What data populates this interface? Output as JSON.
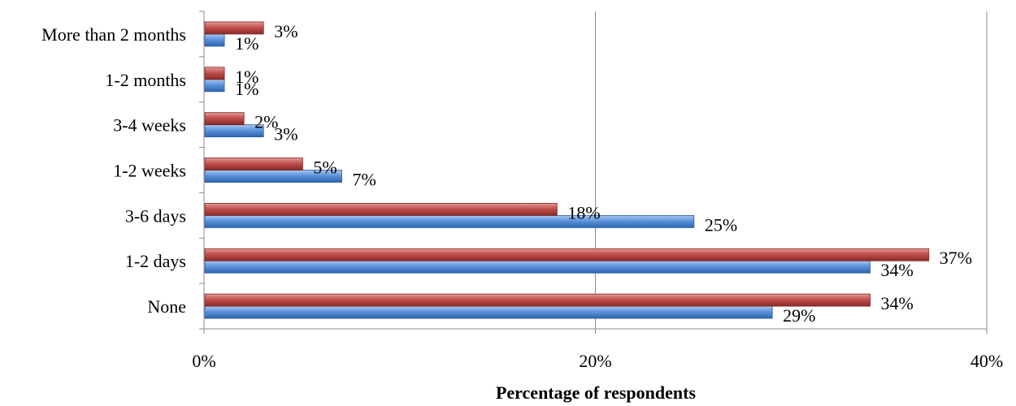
{
  "chart_data": {
    "type": "bar",
    "orientation": "horizontal",
    "categories": [
      "None",
      "1-2 days",
      "3-6 days",
      "1-2 weeks",
      "3-4 weeks",
      "1-2 months",
      "More than 2 months"
    ],
    "series": [
      {
        "values": [
          29,
          34,
          25,
          7,
          3,
          1,
          1
        ],
        "labels": [
          "29%",
          "34%",
          "25%",
          "7%",
          "3%",
          "1%",
          "1%"
        ],
        "color": "#4f87d0"
      },
      {
        "values": [
          34,
          37,
          18,
          5,
          2,
          1,
          3
        ],
        "labels": [
          "34%",
          "37%",
          "18%",
          "5%",
          "2%",
          "1%",
          "3%"
        ],
        "color": "#b03a36"
      }
    ],
    "xlim": [
      0,
      40
    ],
    "x_ticks": [
      "0%",
      "20%",
      "40%"
    ],
    "xlabel": "Percentage of respondents",
    "ylabel": "",
    "grid": "vertical",
    "legend": "none"
  }
}
